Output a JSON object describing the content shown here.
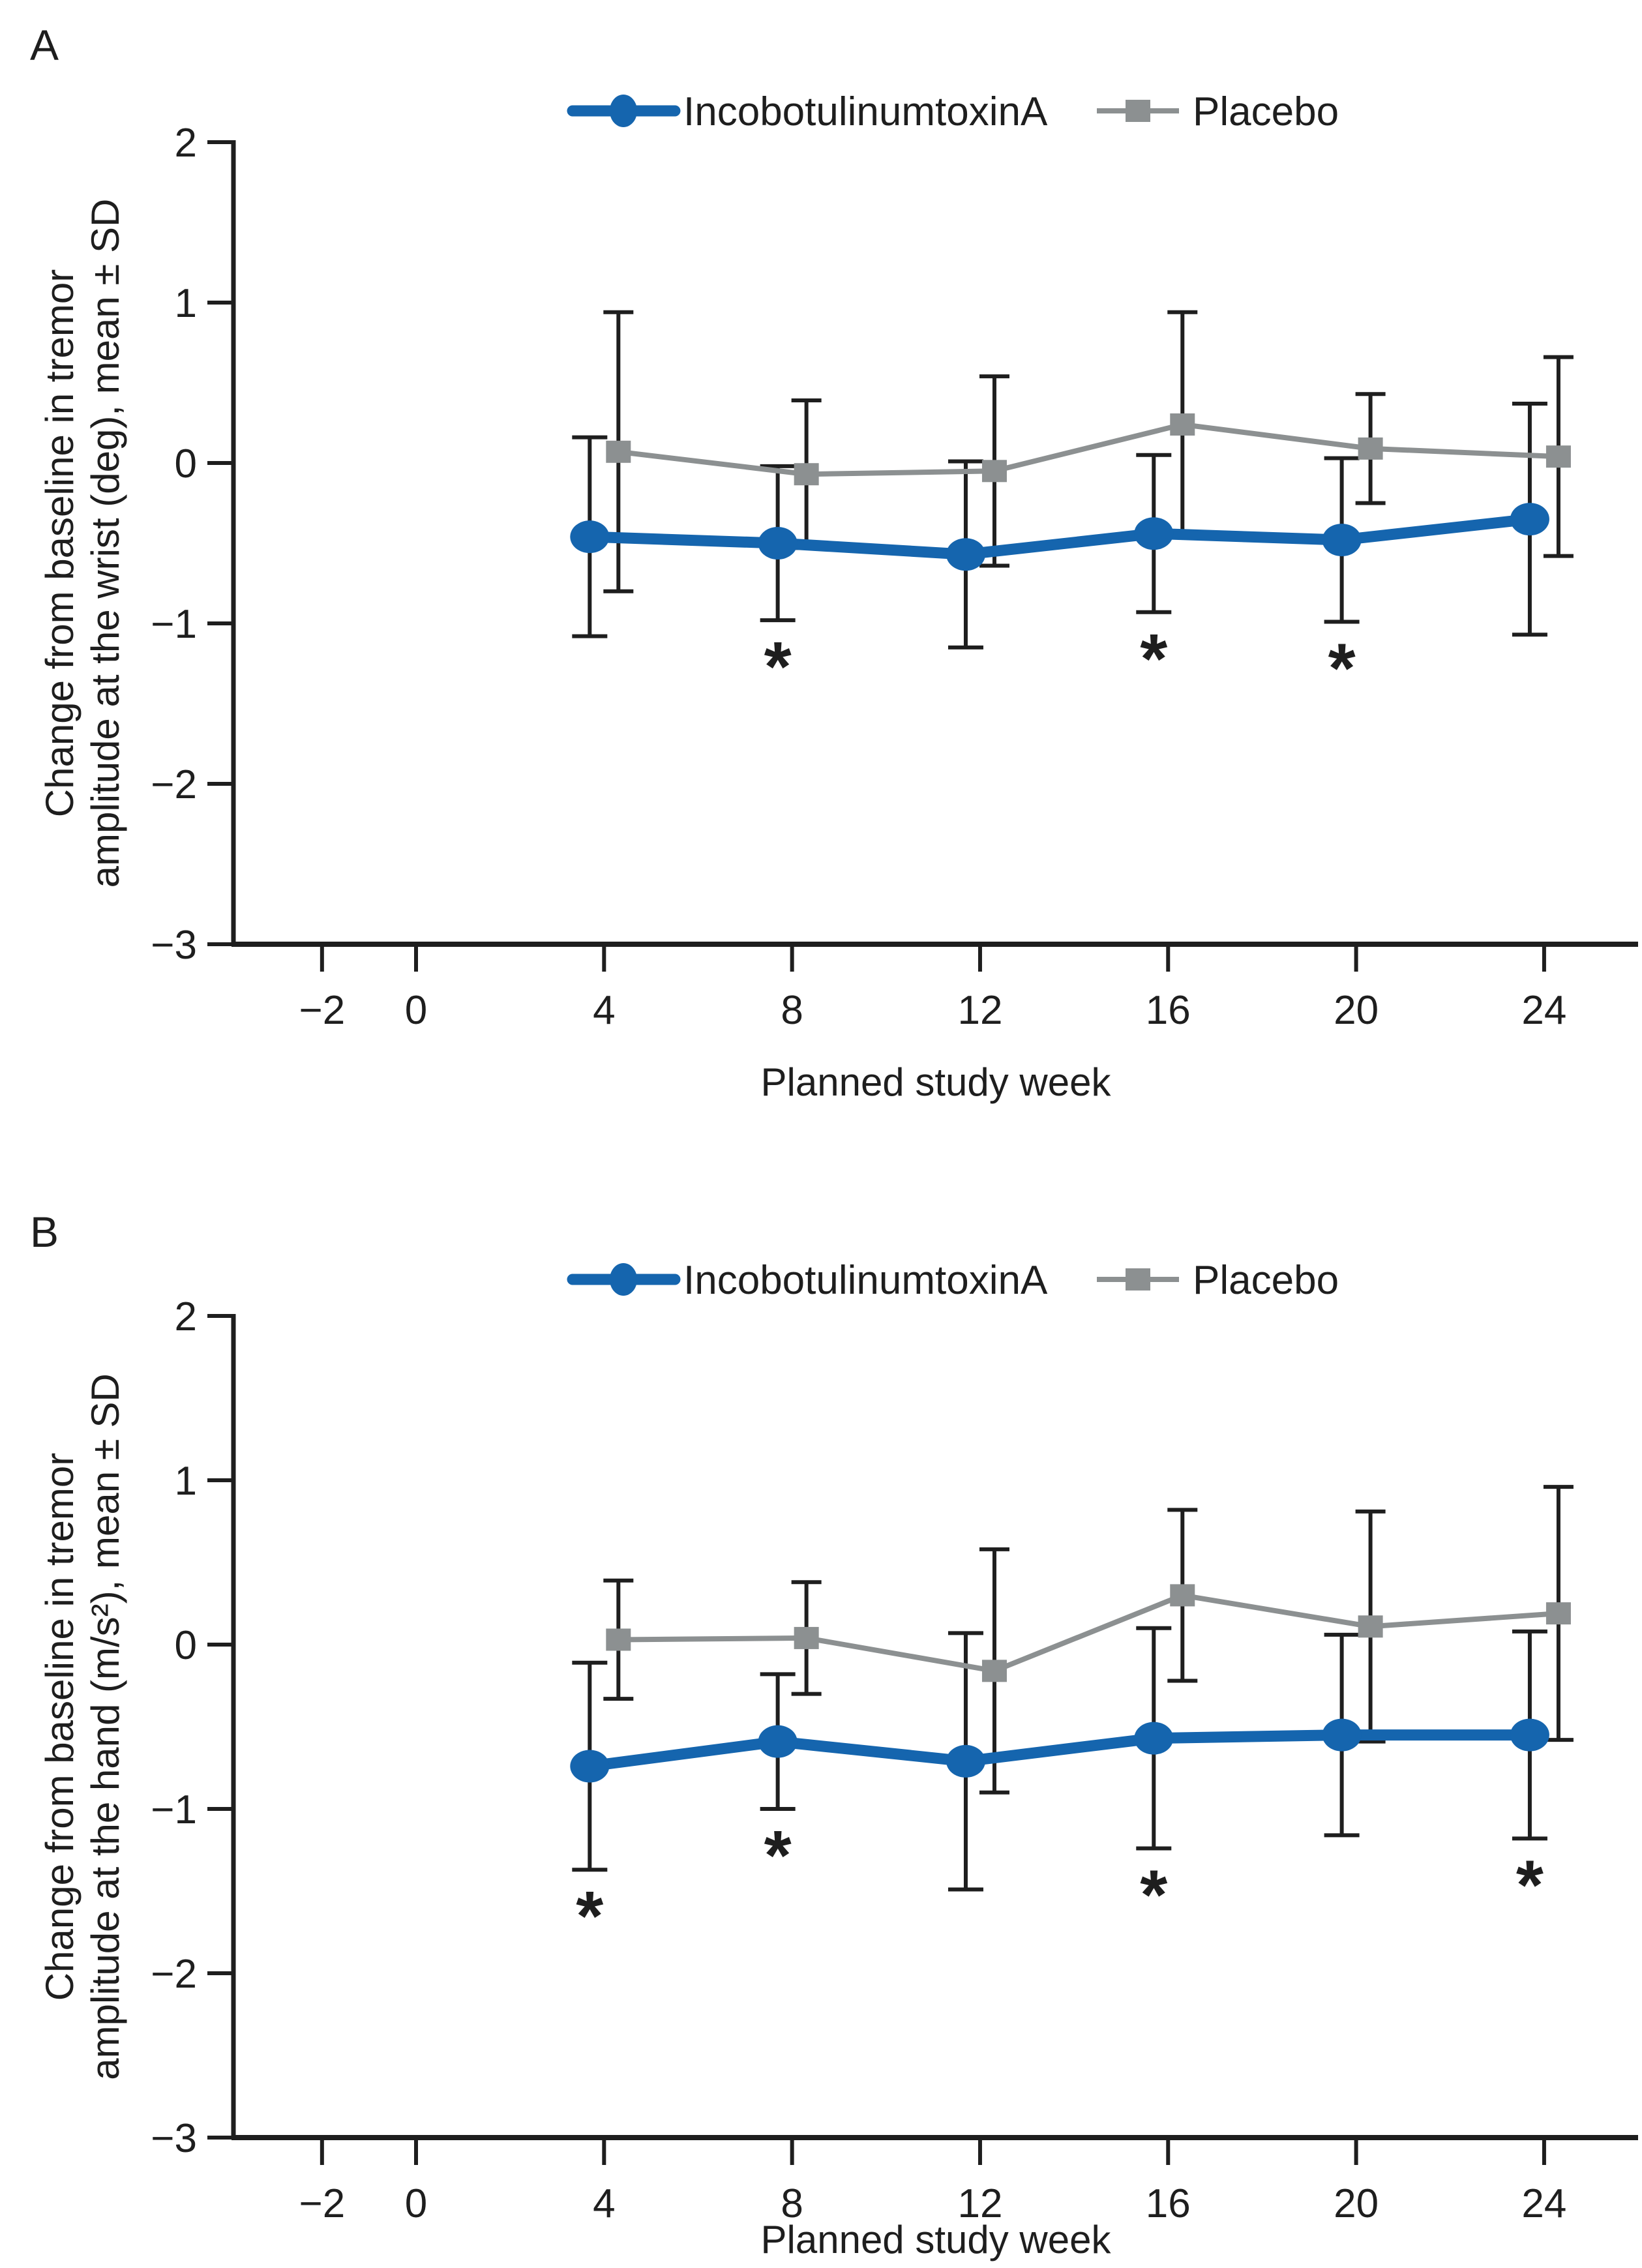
{
  "figure": {
    "panels": [
      {
        "label": "A",
        "y_axis_label_line1": "Change from baseline in tremor",
        "y_axis_label_line2": "amplitude at the wrist (deg), mean ± SD",
        "x_axis_label": "Planned study week"
      },
      {
        "label": "B",
        "y_axis_label_line1": "Change from baseline in tremor",
        "y_axis_label_line2": "amplitude at the hand (m/s²), mean ± SD",
        "x_axis_label": "Planned study week"
      }
    ],
    "legend": [
      {
        "label": "IncobotulinumtoxinA",
        "series": "incobotulinumtoxina",
        "marker": "circle"
      },
      {
        "label": "Placebo",
        "series": "placebo",
        "marker": "square"
      }
    ],
    "colors": {
      "incobotulinumtoxina": "#1565ae",
      "placebo": "#8c9091",
      "error_bar": "#1e1e1e",
      "axis": "#1e1e1e",
      "text": "#1e1e1e",
      "background": "#ffffff"
    },
    "significance_symbol": "*"
  },
  "chart_data": [
    {
      "type": "line",
      "panel": "A",
      "title": "",
      "xlabel": "Planned study week",
      "ylabel": "Change from baseline in tremor amplitude at the wrist (deg), mean ± SD",
      "ylim": [
        -3,
        2
      ],
      "y_ticks": [
        2,
        1,
        0,
        -1,
        -2,
        -3
      ],
      "x_ticks": [
        -2,
        0,
        4,
        8,
        12,
        16,
        20,
        24
      ],
      "grid": false,
      "legend_position": "top",
      "weeks": [
        4,
        8,
        12,
        16,
        20,
        24
      ],
      "series": [
        {
          "name": "IncobotulinumtoxinA",
          "key": "incobotulinumtoxina",
          "marker": "circle",
          "mean": [
            -0.46,
            -0.5,
            -0.57,
            -0.44,
            -0.48,
            -0.35
          ],
          "sd": [
            0.62,
            0.48,
            0.58,
            0.49,
            0.51,
            0.72
          ]
        },
        {
          "name": "Placebo",
          "key": "placebo",
          "marker": "square",
          "mean": [
            0.07,
            -0.07,
            -0.05,
            0.24,
            0.09,
            0.04
          ],
          "sd": [
            0.87,
            0.46,
            0.59,
            0.7,
            0.34,
            0.62
          ]
        }
      ],
      "significant_weeks": [
        8,
        16,
        20
      ],
      "significance_symbol": "*"
    },
    {
      "type": "line",
      "panel": "B",
      "title": "",
      "xlabel": "Planned study week",
      "ylabel": "Change from baseline in tremor amplitude at the hand (m/s²), mean ± SD",
      "ylim": [
        -3,
        2
      ],
      "y_ticks": [
        2,
        1,
        0,
        -1,
        -2,
        -3
      ],
      "x_ticks": [
        -2,
        0,
        4,
        8,
        12,
        16,
        20,
        24
      ],
      "grid": false,
      "legend_position": "top",
      "weeks": [
        4,
        8,
        12,
        16,
        20,
        24
      ],
      "series": [
        {
          "name": "IncobotulinumtoxinA",
          "key": "incobotulinumtoxina",
          "marker": "circle",
          "mean": [
            -0.74,
            -0.59,
            -0.71,
            -0.57,
            -0.55,
            -0.55
          ],
          "sd": [
            0.63,
            0.41,
            0.78,
            0.67,
            0.61,
            0.63
          ]
        },
        {
          "name": "Placebo",
          "key": "placebo",
          "marker": "square",
          "mean": [
            0.03,
            0.04,
            -0.16,
            0.3,
            0.11,
            0.19
          ],
          "sd": [
            0.36,
            0.34,
            0.74,
            0.52,
            0.7,
            0.77
          ]
        }
      ],
      "significant_weeks": [
        4,
        8,
        16,
        24
      ],
      "significance_symbol": "*"
    }
  ]
}
